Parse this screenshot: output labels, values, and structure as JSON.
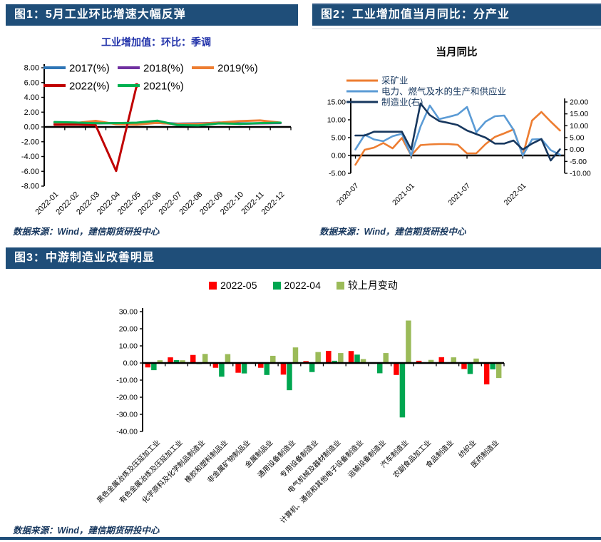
{
  "page": {
    "accent_color": "#1F4E79",
    "background": "#FFFFFF"
  },
  "figures": {
    "fig1": {
      "banner": "图1：5月工业环比增速大幅反弹",
      "subtitle": "工业增加值：环比：季调",
      "source": "数据来源：Wind，建信期货研投中心"
    },
    "fig2": {
      "banner": "图2：工业增加值当月同比：分产业",
      "title": "当月同比",
      "source": "数据来源：Wind，建信期货研投中心"
    },
    "fig3": {
      "banner": "图3：中游制造业改善明显",
      "source": "数据来源：Wind，建信期货研投中心"
    }
  },
  "chart_data": [
    {
      "id": "chart1",
      "type": "line",
      "title": "工业增加值：环比：季调",
      "ylabel": "",
      "ylim": [
        -8,
        8
      ],
      "yticks": [
        8,
        6,
        4,
        2,
        0,
        -2,
        -4,
        -6,
        -8
      ],
      "grid": false,
      "legend_position": "top-inside-two-rows",
      "categories": [
        "2022-01",
        "2022-02",
        "2022-03",
        "2022-04",
        "2022-05",
        "2022-06",
        "2022-07",
        "2022-08",
        "2022-09",
        "2022-10",
        "2022-11",
        "2022-12"
      ],
      "series": [
        {
          "name": "2017(%)",
          "color": "#2E75B6",
          "values": [
            0.52,
            0.5,
            0.55,
            0.5,
            0.52,
            0.6,
            0.45,
            0.5,
            0.55,
            0.48,
            0.5,
            0.55
          ]
        },
        {
          "name": "2018(%)",
          "color": "#7030A0",
          "values": [
            0.5,
            0.45,
            0.48,
            0.52,
            0.5,
            0.55,
            0.4,
            0.45,
            0.6,
            0.42,
            0.48,
            0.52
          ]
        },
        {
          "name": "2019(%)",
          "color": "#ED7D31",
          "values": [
            0.6,
            0.52,
            0.82,
            0.38,
            0.32,
            0.55,
            0.38,
            0.42,
            0.58,
            0.78,
            0.88,
            0.58
          ]
        },
        {
          "name": "2022(%)",
          "color": "#C00000",
          "end_marker": true,
          "values": [
            0.3,
            0.32,
            0.25,
            -5.95,
            5.61,
            null,
            null,
            null,
            null,
            null,
            null,
            null
          ]
        },
        {
          "name": "2021(%)",
          "color": "#00B050",
          "values": [
            0.66,
            0.6,
            0.5,
            0.52,
            0.58,
            0.85,
            0.25,
            0.2,
            0.48,
            0.42,
            0.52,
            0.58
          ]
        }
      ]
    },
    {
      "id": "chart2",
      "type": "line",
      "title": "当月同比",
      "ylim_left": [
        -5,
        15
      ],
      "yticks_left": [
        15,
        10,
        5,
        0,
        -5
      ],
      "ylim_right": [
        -10,
        20
      ],
      "yticks_right": [
        20,
        15,
        10,
        5,
        0,
        -5,
        -10
      ],
      "grid": false,
      "legend_position": "top-left-stacked",
      "x_tick_labels": [
        "2020-07",
        "2021-01",
        "2021-07",
        "2022-01"
      ],
      "categories": [
        "2020-07",
        "2020-08",
        "2020-09",
        "2020-10",
        "2020-11",
        "2020-12",
        "2021-01",
        "2021-02",
        "2021-03",
        "2021-04",
        "2021-05",
        "2021-06",
        "2021-07",
        "2021-08",
        "2021-09",
        "2021-10",
        "2021-11",
        "2021-12",
        "2022-01",
        "2022-02",
        "2022-03",
        "2022-04",
        "2022-05"
      ],
      "series": [
        {
          "name": "采矿业",
          "axis": "left",
          "color": "#ED7D31",
          "values": [
            -2.6,
            1.6,
            2.2,
            3.5,
            2.0,
            4.9,
            0.0,
            2.9,
            3.1,
            3.2,
            3.2,
            3.0,
            0.6,
            0.6,
            3.2,
            5.2,
            6.2,
            7.3,
            0.0,
            9.8,
            12.2,
            9.5,
            7.0
          ]
        },
        {
          "name": "电力、燃气及水的生产和供应业",
          "axis": "left",
          "color": "#5B9BD5",
          "values": [
            1.7,
            5.8,
            4.5,
            4.0,
            5.4,
            6.1,
            0.0,
            8.1,
            14.0,
            10.2,
            10.8,
            11.5,
            13.6,
            6.5,
            9.5,
            11.0,
            11.2,
            7.2,
            0.0,
            4.5,
            4.6,
            1.5,
            0.2
          ]
        },
        {
          "name": "制造业(右)",
          "axis": "right",
          "color": "#17375E",
          "values": [
            5.9,
            5.9,
            7.5,
            7.5,
            7.5,
            7.5,
            0.0,
            19.4,
            14.5,
            12.0,
            11.2,
            10.3,
            8.0,
            6.5,
            5.0,
            2.5,
            2.5,
            3.8,
            0.0,
            2.5,
            4.4,
            -4.6,
            0.1
          ]
        }
      ]
    },
    {
      "id": "chart3",
      "type": "bar",
      "title": "",
      "ylim": [
        -40,
        30
      ],
      "yticks": [
        30,
        20,
        10,
        0,
        -10,
        -20,
        -30,
        -40
      ],
      "grid": false,
      "legend_position": "top-center",
      "categories": [
        "黑色金属冶炼及压延加工业",
        "有色金属冶炼及压延加工业",
        "化学原料及化学制品制造业",
        "橡胶和塑料制品业",
        "非金属矿物制品业",
        "金属制品业",
        "通用设备制造业",
        "专用设备制造业",
        "电气机械及器材制造业",
        "计算机、通信和其他电子设备制造业",
        "运输设备制造业",
        "汽车制造业",
        "农副食品加工业",
        "食品制造业",
        "纺织业",
        "医药制造业"
      ],
      "series": [
        {
          "name": "2022-05",
          "color": "#FF0000",
          "values": [
            -2.6,
            3.3,
            4.7,
            -2.8,
            -5.7,
            -2.8,
            -6.8,
            1.1,
            7.1,
            7.0,
            -0.2,
            -7.0,
            1.3,
            3.4,
            -3.5,
            -12.5
          ]
        },
        {
          "name": "2022-04",
          "color": "#00A650",
          "values": [
            -4.2,
            1.7,
            -0.6,
            -8.0,
            -6.1,
            -7.0,
            -15.9,
            -5.3,
            1.3,
            4.9,
            -6.0,
            -31.8,
            -0.4,
            0.1,
            -6.4,
            -3.7
          ]
        },
        {
          "name": "较上月变动",
          "color": "#9BBB59",
          "values": [
            1.6,
            1.6,
            5.3,
            5.2,
            0.4,
            4.2,
            9.1,
            6.4,
            5.8,
            2.3,
            5.8,
            24.8,
            1.8,
            3.3,
            2.6,
            -8.8
          ]
        }
      ]
    }
  ]
}
